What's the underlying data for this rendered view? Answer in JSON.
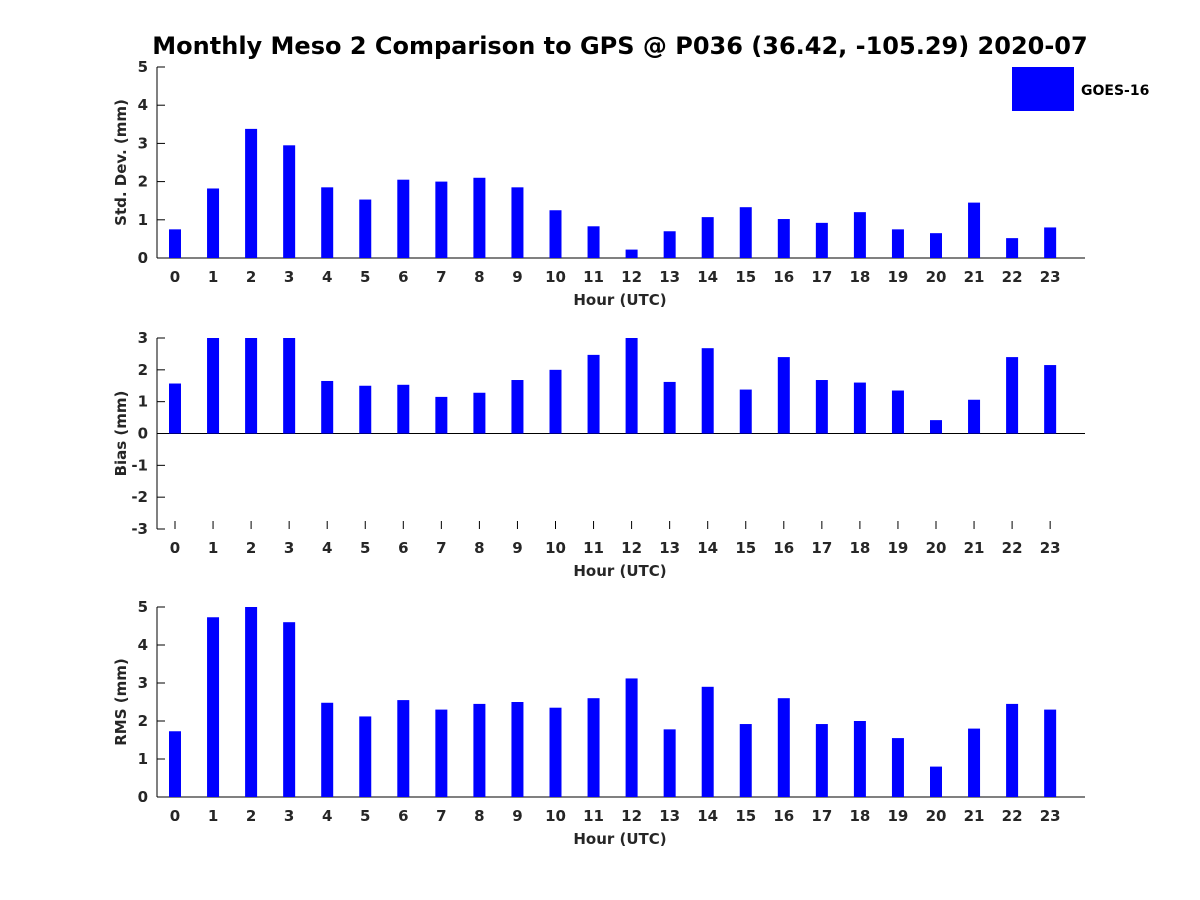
{
  "figure": {
    "title": "Monthly Meso 2 Comparison to GPS @ P036 (36.42, -105.29) 2020-07",
    "legend": {
      "label": "GOES-16",
      "color": "#0000ff",
      "position": "top-right"
    },
    "bar_color": "#0000ff"
  },
  "chart_data": [
    {
      "type": "bar",
      "id": "std",
      "categories": [
        "0",
        "1",
        "2",
        "3",
        "4",
        "5",
        "6",
        "7",
        "8",
        "9",
        "10",
        "11",
        "12",
        "13",
        "14",
        "15",
        "16",
        "17",
        "18",
        "19",
        "20",
        "21",
        "22",
        "23"
      ],
      "series": [
        {
          "name": "GOES-16",
          "values": [
            0.75,
            1.82,
            3.38,
            2.95,
            1.85,
            1.53,
            2.05,
            2.0,
            2.1,
            1.85,
            1.25,
            0.83,
            0.22,
            0.7,
            1.07,
            1.33,
            1.02,
            0.92,
            1.2,
            0.75,
            0.65,
            1.45,
            0.52,
            0.8
          ]
        }
      ],
      "xlabel": "Hour (UTC)",
      "ylabel": "Std. Dev. (mm)",
      "ylim": [
        0,
        5
      ],
      "yticks": [
        0,
        1,
        2,
        3,
        4,
        5
      ],
      "grid": false
    },
    {
      "type": "bar",
      "id": "bias",
      "categories": [
        "0",
        "1",
        "2",
        "3",
        "4",
        "5",
        "6",
        "7",
        "8",
        "9",
        "10",
        "11",
        "12",
        "13",
        "14",
        "15",
        "16",
        "17",
        "18",
        "19",
        "20",
        "21",
        "22",
        "23"
      ],
      "series": [
        {
          "name": "GOES-16",
          "values": [
            1.57,
            3.0,
            3.0,
            3.0,
            1.65,
            1.5,
            1.53,
            1.15,
            1.28,
            1.68,
            2.0,
            2.47,
            3.0,
            1.62,
            2.68,
            1.38,
            2.4,
            1.68,
            1.6,
            1.35,
            0.42,
            1.06,
            2.4,
            2.15
          ]
        }
      ],
      "xlabel": "Hour (UTC)",
      "ylabel": "Bias (mm)",
      "ylim": [
        -3,
        3
      ],
      "yticks": [
        -3,
        -2,
        -1,
        0,
        1,
        2,
        3
      ],
      "grid": false
    },
    {
      "type": "bar",
      "id": "rms",
      "categories": [
        "0",
        "1",
        "2",
        "3",
        "4",
        "5",
        "6",
        "7",
        "8",
        "9",
        "10",
        "11",
        "12",
        "13",
        "14",
        "15",
        "16",
        "17",
        "18",
        "19",
        "20",
        "21",
        "22",
        "23"
      ],
      "series": [
        {
          "name": "GOES-16",
          "values": [
            1.73,
            4.73,
            5.0,
            4.6,
            2.48,
            2.12,
            2.55,
            2.3,
            2.45,
            2.5,
            2.35,
            2.6,
            3.12,
            1.78,
            2.9,
            1.92,
            2.6,
            1.92,
            2.0,
            1.55,
            0.8,
            1.8,
            2.45,
            2.3
          ]
        }
      ],
      "xlabel": "Hour (UTC)",
      "ylabel": "RMS (mm)",
      "ylim": [
        0,
        5
      ],
      "yticks": [
        0,
        1,
        2,
        3,
        4,
        5
      ],
      "grid": false
    }
  ]
}
